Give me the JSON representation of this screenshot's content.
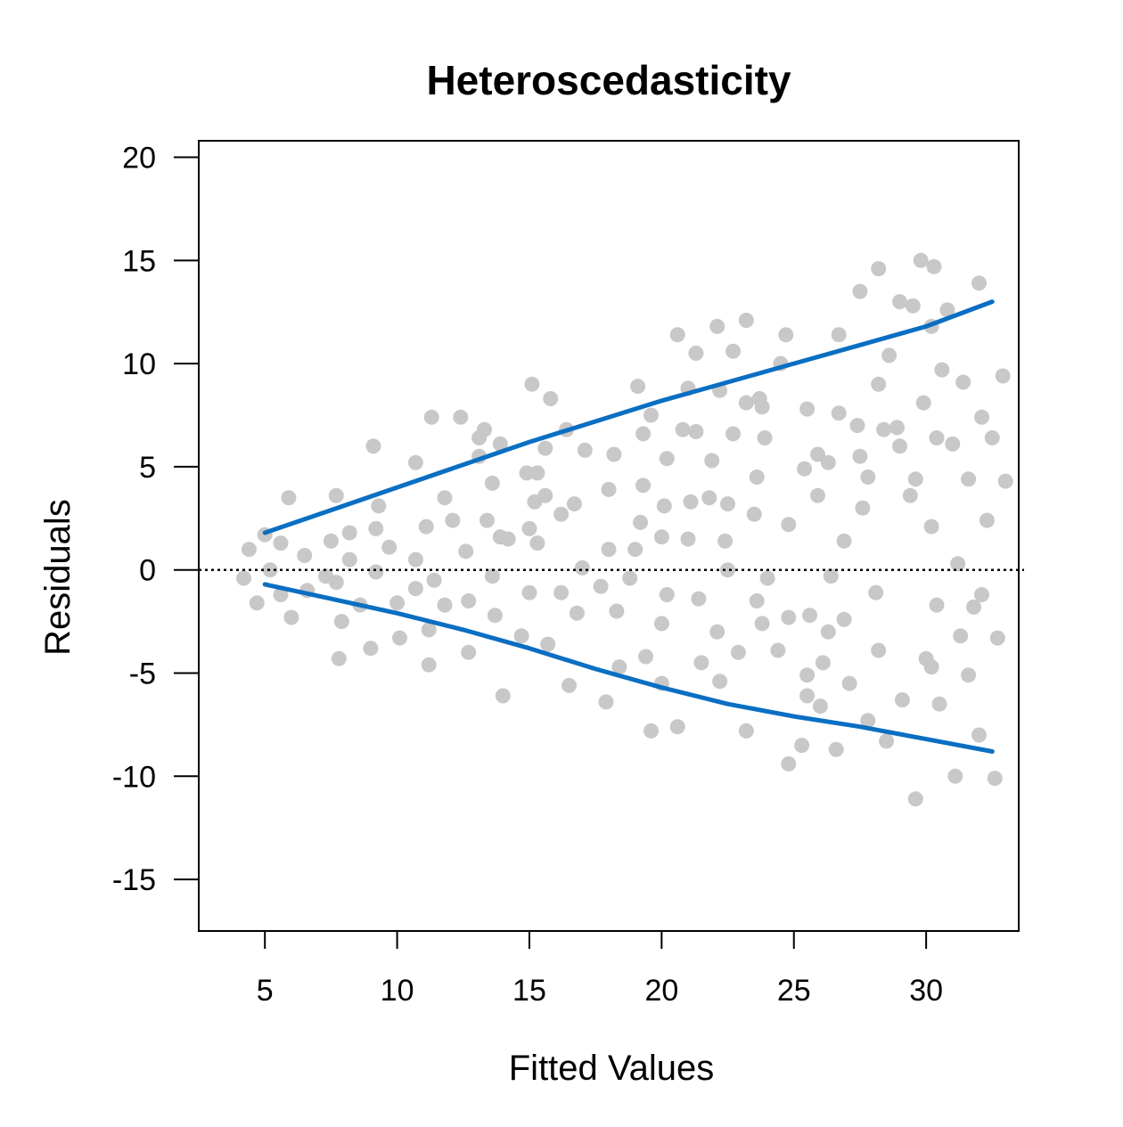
{
  "chart_data": {
    "type": "scatter",
    "title": "Heteroscedasticity",
    "xlabel": "Fitted Values",
    "ylabel": "Residuals",
    "xlim": [
      2.5,
      33.5
    ],
    "ylim": [
      -17.5,
      20.8
    ],
    "x_ticks": [
      5,
      10,
      15,
      20,
      25,
      30
    ],
    "y_ticks": [
      -15,
      -10,
      -5,
      0,
      5,
      10,
      15,
      20
    ],
    "x_tick_labels": [
      "5",
      "10",
      "15",
      "20",
      "25",
      "30"
    ],
    "y_tick_labels": [
      "-15",
      "-10",
      "-5",
      "0",
      "5",
      "10",
      "15",
      "20"
    ],
    "reference_line": {
      "y": 0,
      "style": "dotted",
      "color": "#000000"
    },
    "colors": {
      "points": "#c8c8c8",
      "bands": "#0a6fc2"
    },
    "grid": false,
    "series": [
      {
        "type": "scatter",
        "points": [
          [
            4.2,
            -0.4
          ],
          [
            4.4,
            1.0
          ],
          [
            4.7,
            -1.6
          ],
          [
            5.0,
            1.7
          ],
          [
            5.2,
            0.0
          ],
          [
            5.6,
            1.3
          ],
          [
            5.6,
            -1.2
          ],
          [
            6.0,
            -2.3
          ],
          [
            5.9,
            3.5
          ],
          [
            6.5,
            0.7
          ],
          [
            6.6,
            -1.0
          ],
          [
            7.3,
            -0.3
          ],
          [
            7.5,
            1.4
          ],
          [
            7.7,
            3.6
          ],
          [
            7.7,
            -0.6
          ],
          [
            7.8,
            -4.3
          ],
          [
            7.9,
            -2.5
          ],
          [
            8.2,
            1.8
          ],
          [
            8.2,
            0.5
          ],
          [
            8.6,
            -1.7
          ],
          [
            9.0,
            -3.8
          ],
          [
            9.1,
            6.0
          ],
          [
            9.2,
            2.0
          ],
          [
            9.2,
            -0.1
          ],
          [
            9.3,
            3.1
          ],
          [
            9.7,
            1.1
          ],
          [
            10.0,
            -1.6
          ],
          [
            10.1,
            -3.3
          ],
          [
            10.7,
            5.2
          ],
          [
            10.7,
            0.5
          ],
          [
            10.7,
            -0.9
          ],
          [
            11.1,
            2.1
          ],
          [
            11.2,
            -2.9
          ],
          [
            11.2,
            -4.6
          ],
          [
            11.3,
            7.4
          ],
          [
            11.4,
            -0.5
          ],
          [
            11.8,
            -1.7
          ],
          [
            11.8,
            3.5
          ],
          [
            12.1,
            2.4
          ],
          [
            12.4,
            7.4
          ],
          [
            12.6,
            0.9
          ],
          [
            12.7,
            -1.5
          ],
          [
            12.7,
            -4.0
          ],
          [
            13.1,
            5.5
          ],
          [
            13.1,
            6.4
          ],
          [
            13.3,
            6.8
          ],
          [
            13.4,
            2.4
          ],
          [
            13.6,
            4.2
          ],
          [
            13.6,
            -0.3
          ],
          [
            13.7,
            -2.2
          ],
          [
            13.9,
            6.1
          ],
          [
            13.9,
            1.6
          ],
          [
            14.0,
            -6.1
          ],
          [
            14.2,
            1.5
          ],
          [
            14.7,
            -3.2
          ],
          [
            14.9,
            4.7
          ],
          [
            15.0,
            2.0
          ],
          [
            15.0,
            -1.1
          ],
          [
            15.1,
            9.0
          ],
          [
            15.2,
            3.3
          ],
          [
            15.3,
            1.3
          ],
          [
            15.3,
            4.7
          ],
          [
            15.6,
            3.6
          ],
          [
            15.6,
            5.9
          ],
          [
            15.7,
            -3.6
          ],
          [
            15.8,
            8.3
          ],
          [
            16.2,
            2.7
          ],
          [
            16.2,
            -1.1
          ],
          [
            16.4,
            6.8
          ],
          [
            16.5,
            -5.6
          ],
          [
            16.7,
            3.2
          ],
          [
            16.8,
            -2.1
          ],
          [
            17.0,
            0.1
          ],
          [
            17.1,
            5.8
          ],
          [
            17.7,
            -0.8
          ],
          [
            17.9,
            -6.4
          ],
          [
            18.0,
            3.9
          ],
          [
            18.0,
            1.0
          ],
          [
            18.2,
            5.6
          ],
          [
            18.3,
            -2.0
          ],
          [
            18.4,
            -4.7
          ],
          [
            18.8,
            -0.4
          ],
          [
            19.0,
            1.0
          ],
          [
            19.1,
            8.9
          ],
          [
            19.2,
            2.3
          ],
          [
            19.3,
            6.6
          ],
          [
            19.3,
            4.1
          ],
          [
            19.4,
            -4.2
          ],
          [
            19.6,
            7.5
          ],
          [
            19.6,
            -7.8
          ],
          [
            20.0,
            1.6
          ],
          [
            20.0,
            -2.6
          ],
          [
            20.0,
            -5.5
          ],
          [
            20.1,
            3.1
          ],
          [
            20.2,
            5.4
          ],
          [
            20.2,
            -1.2
          ],
          [
            20.6,
            11.4
          ],
          [
            20.6,
            -7.6
          ],
          [
            20.8,
            6.8
          ],
          [
            21.0,
            8.8
          ],
          [
            21.0,
            1.5
          ],
          [
            21.1,
            3.3
          ],
          [
            21.3,
            10.5
          ],
          [
            21.3,
            6.7
          ],
          [
            21.4,
            -1.4
          ],
          [
            21.5,
            -4.5
          ],
          [
            21.8,
            3.5
          ],
          [
            21.9,
            5.3
          ],
          [
            22.1,
            11.8
          ],
          [
            22.1,
            -3.0
          ],
          [
            22.2,
            8.7
          ],
          [
            22.2,
            -5.4
          ],
          [
            22.4,
            1.4
          ],
          [
            22.5,
            0.0
          ],
          [
            22.5,
            3.2
          ],
          [
            22.7,
            10.6
          ],
          [
            22.7,
            6.6
          ],
          [
            22.9,
            -4.0
          ],
          [
            23.2,
            12.1
          ],
          [
            23.2,
            8.1
          ],
          [
            23.2,
            -7.8
          ],
          [
            23.5,
            2.7
          ],
          [
            23.6,
            4.5
          ],
          [
            23.6,
            -1.5
          ],
          [
            23.7,
            8.3
          ],
          [
            23.8,
            7.9
          ],
          [
            23.8,
            -2.6
          ],
          [
            23.9,
            6.4
          ],
          [
            24.0,
            -0.4
          ],
          [
            24.4,
            -3.9
          ],
          [
            24.5,
            10.0
          ],
          [
            24.7,
            11.4
          ],
          [
            24.8,
            2.2
          ],
          [
            24.8,
            -2.3
          ],
          [
            24.8,
            -9.4
          ],
          [
            25.3,
            -8.5
          ],
          [
            25.4,
            4.9
          ],
          [
            25.5,
            7.8
          ],
          [
            25.5,
            -6.1
          ],
          [
            25.5,
            -5.1
          ],
          [
            25.6,
            -2.2
          ],
          [
            25.9,
            5.6
          ],
          [
            25.9,
            3.6
          ],
          [
            26.0,
            -6.6
          ],
          [
            26.1,
            -4.5
          ],
          [
            26.3,
            5.2
          ],
          [
            26.3,
            -3.0
          ],
          [
            26.4,
            -0.3
          ],
          [
            26.6,
            -8.7
          ],
          [
            26.7,
            11.4
          ],
          [
            26.7,
            7.6
          ],
          [
            26.9,
            1.4
          ],
          [
            26.9,
            -2.4
          ],
          [
            27.1,
            -5.5
          ],
          [
            27.4,
            7.0
          ],
          [
            27.5,
            5.5
          ],
          [
            27.5,
            13.5
          ],
          [
            27.6,
            3.0
          ],
          [
            27.8,
            4.5
          ],
          [
            27.8,
            -7.3
          ],
          [
            28.1,
            -1.1
          ],
          [
            28.2,
            14.6
          ],
          [
            28.2,
            9.0
          ],
          [
            28.2,
            -3.9
          ],
          [
            28.4,
            6.8
          ],
          [
            28.5,
            -8.3
          ],
          [
            28.6,
            10.4
          ],
          [
            28.9,
            6.9
          ],
          [
            29.0,
            6.0
          ],
          [
            29.0,
            13.0
          ],
          [
            29.1,
            -6.3
          ],
          [
            29.4,
            3.6
          ],
          [
            29.5,
            12.8
          ],
          [
            29.6,
            4.4
          ],
          [
            29.6,
            -11.1
          ],
          [
            29.8,
            15.0
          ],
          [
            29.9,
            8.1
          ],
          [
            30.0,
            -4.3
          ],
          [
            30.2,
            11.8
          ],
          [
            30.2,
            2.1
          ],
          [
            30.2,
            -4.7
          ],
          [
            30.3,
            14.7
          ],
          [
            30.4,
            6.4
          ],
          [
            30.4,
            -1.7
          ],
          [
            30.5,
            -6.5
          ],
          [
            30.6,
            9.7
          ],
          [
            30.8,
            12.6
          ],
          [
            31.0,
            6.1
          ],
          [
            31.1,
            -10.0
          ],
          [
            31.2,
            0.3
          ],
          [
            31.3,
            -3.2
          ],
          [
            31.4,
            9.1
          ],
          [
            31.6,
            -5.1
          ],
          [
            31.6,
            4.4
          ],
          [
            31.8,
            -1.8
          ],
          [
            32.0,
            13.9
          ],
          [
            32.0,
            -8.0
          ],
          [
            32.1,
            -1.2
          ],
          [
            32.1,
            7.4
          ],
          [
            32.3,
            2.4
          ],
          [
            32.5,
            6.4
          ],
          [
            32.6,
            -10.1
          ],
          [
            32.7,
            -3.3
          ],
          [
            32.9,
            9.4
          ],
          [
            33.0,
            4.3
          ]
        ]
      },
      {
        "type": "line",
        "x": [
          5.0,
          7.5,
          10.0,
          12.5,
          15.0,
          17.5,
          20.0,
          22.5,
          25.0,
          27.5,
          30.0,
          32.5
        ],
        "values": [
          1.8,
          2.9,
          4.0,
          5.1,
          6.2,
          7.2,
          8.2,
          9.1,
          10.0,
          10.9,
          11.8,
          13.0
        ]
      },
      {
        "type": "line",
        "x": [
          5.0,
          7.5,
          10.0,
          12.5,
          15.0,
          17.5,
          20.0,
          22.5,
          25.0,
          27.5,
          30.0,
          32.5
        ],
        "values": [
          -0.7,
          -1.4,
          -2.1,
          -2.9,
          -3.8,
          -4.8,
          -5.7,
          -6.5,
          -7.1,
          -7.6,
          -8.2,
          -8.8
        ]
      }
    ]
  }
}
